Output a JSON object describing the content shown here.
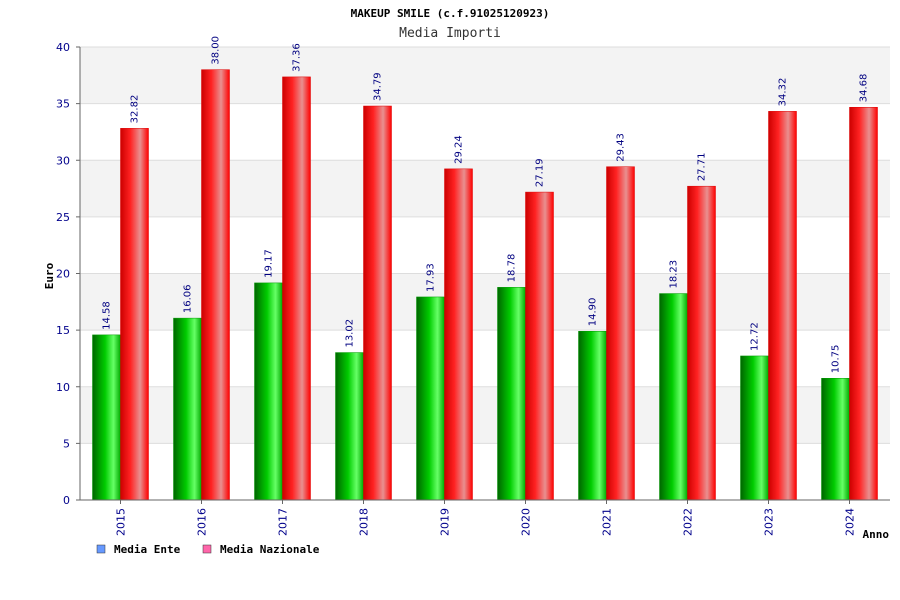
{
  "chart_data": {
    "type": "bar",
    "title": "MAKEUP SMILE (c.f.91025120923)",
    "subtitle": "Media Importi",
    "xlabel": "Anno",
    "ylabel": "Euro",
    "categories": [
      "2015",
      "2016",
      "2017",
      "2018",
      "2019",
      "2020",
      "2021",
      "2022",
      "2023",
      "2024"
    ],
    "series": [
      {
        "name": "Media Ente",
        "values": [
          14.58,
          16.06,
          19.17,
          13.02,
          17.93,
          18.78,
          14.9,
          18.23,
          12.72,
          10.75
        ],
        "color": "#00cc00"
      },
      {
        "name": "Media Nazionale",
        "values": [
          32.82,
          38.0,
          37.36,
          34.79,
          29.24,
          27.19,
          29.43,
          27.71,
          34.32,
          34.68
        ],
        "color": "#ff0000"
      }
    ],
    "value_labels": [
      [
        "14.58",
        "16.06",
        "19.17",
        "13.02",
        "17.93",
        "18.78",
        "14.90",
        "18.23",
        "12.72",
        "10.75"
      ],
      [
        "32.82",
        "38.00",
        "37.36",
        "34.79",
        "29.24",
        "27.19",
        "29.43",
        "27.71",
        "34.32",
        "34.68"
      ]
    ],
    "ylim": [
      0,
      40
    ],
    "yticks": [
      "0",
      "5",
      "10",
      "15",
      "20",
      "25",
      "30",
      "35",
      "40"
    ],
    "grid": true,
    "legend": [
      {
        "label": "Media Ente",
        "color": "#6699ff"
      },
      {
        "label": "Media Nazionale",
        "color": "#ff66aa"
      }
    ],
    "legend_position": "bottom-left"
  }
}
